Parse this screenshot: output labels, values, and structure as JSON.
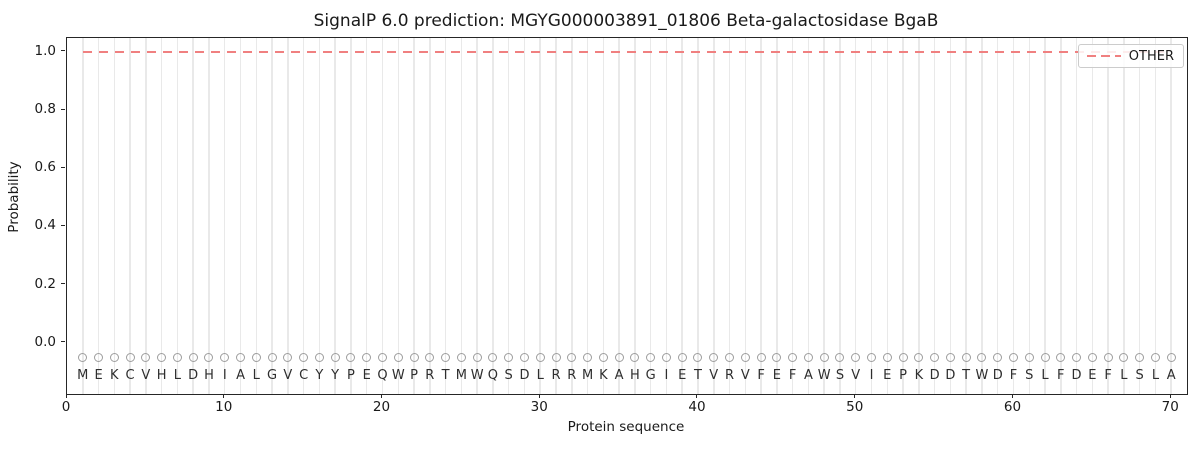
{
  "chart_data": {
    "type": "line",
    "title": "SignalP 6.0 prediction: MGYG000003891_01806 Beta-galactosidase BgaB",
    "xlabel": "Protein sequence",
    "ylabel": "Probability",
    "xlim": [
      0,
      71
    ],
    "ylim": [
      -0.176,
      1.048
    ],
    "xticks": [
      0,
      10,
      20,
      30,
      40,
      50,
      60,
      70
    ],
    "yticks": [
      0.0,
      0.2,
      0.4,
      0.6,
      0.8,
      1.0
    ],
    "ytick_labels": [
      "0.0",
      "0.2",
      "0.4",
      "0.6",
      "0.8",
      "1.0"
    ],
    "grid": {
      "show_vertical_per_residue": true,
      "color": "#e9e9e9"
    },
    "sequence": "MEKCVHLDHIALGVCYYPEQWPRTMWQSDLRRMKAHGIETVRVFEFAWSVIEPKDDTWDFSLFDEFLSLA",
    "series": [
      {
        "name": "OTHER",
        "color": "#f08080",
        "linestyle": "dashed",
        "x_start": 1,
        "x_end": 70,
        "y_constant": 1.0,
        "note": "constant probability 1.0 for all 70 residues"
      }
    ],
    "markers": {
      "shape": "open-circle",
      "color": "#9e9e9e",
      "y_value": -0.05
    },
    "letters": {
      "color": "#2e2e2e",
      "y_value": -0.115
    },
    "legend": {
      "position": "upper-right",
      "items": [
        {
          "label": "OTHER",
          "color": "#f08080",
          "linestyle": "dashed"
        }
      ]
    }
  }
}
